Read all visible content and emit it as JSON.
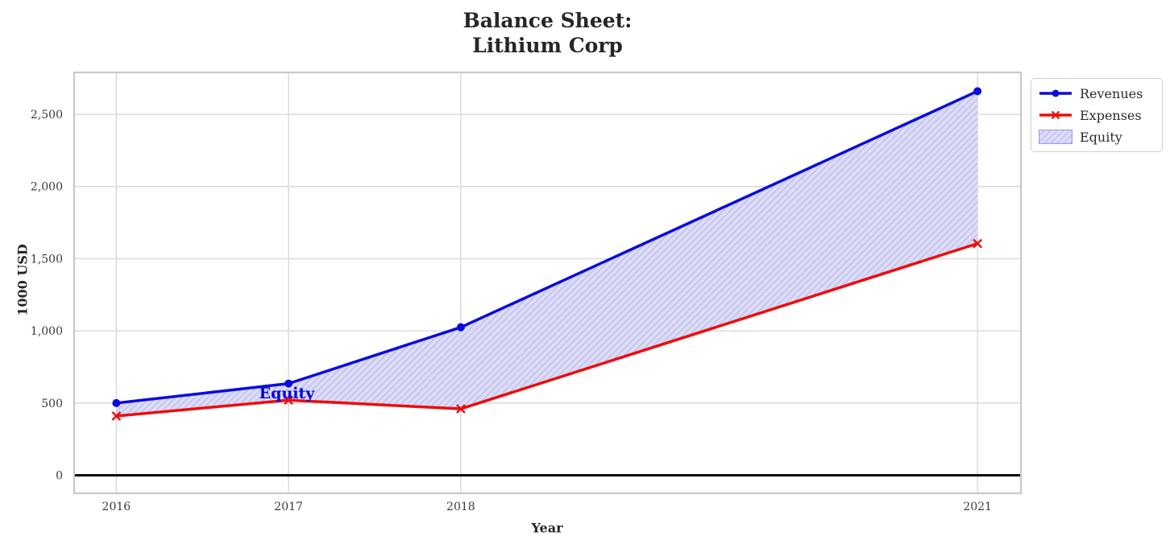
{
  "chart_data": {
    "type": "line",
    "title": "Balance Sheet: Lithium Corp",
    "title_lines": [
      "Balance Sheet:",
      "Lithium Corp"
    ],
    "xlabel": "Year",
    "ylabel": "1000 USD",
    "x": [
      2016,
      2017,
      2018,
      2021
    ],
    "x_tick_labels": [
      "2016",
      "2017",
      "2018",
      "2021"
    ],
    "y_ticks": [
      0,
      500,
      1000,
      1500,
      2000,
      2500
    ],
    "y_tick_labels": [
      "0",
      "500",
      "1,000",
      "1,500",
      "2,000",
      "2,500"
    ],
    "xlim": [
      2015.755,
      2021.252
    ],
    "ylim": [
      -125,
      2790
    ],
    "grid": true,
    "grid_color": "#d9d9d9",
    "zero_line_color": "#000000",
    "series": [
      {
        "name": "Revenues",
        "color": "#0b0bdf",
        "marker": "circle",
        "values": [
          500,
          635,
          1025,
          2660
        ]
      },
      {
        "name": "Expenses",
        "color": "#ee0c0c",
        "marker": "x",
        "values": [
          410,
          520,
          460,
          1605
        ]
      }
    ],
    "area": {
      "name": "Equity",
      "between": [
        "Revenues",
        "Expenses"
      ],
      "facecolor": "#dcdcf6",
      "hatch_color": "#bcbcec",
      "hatch": "//",
      "edge_color": "#9b9be4"
    },
    "annotation": {
      "text": "Equity",
      "x": 2016.99,
      "y": 568,
      "color": "#0000dc"
    },
    "legend": {
      "position": "upper right",
      "items": [
        {
          "label": "Revenues"
        },
        {
          "label": "Expenses"
        },
        {
          "label": "Equity"
        }
      ]
    }
  }
}
